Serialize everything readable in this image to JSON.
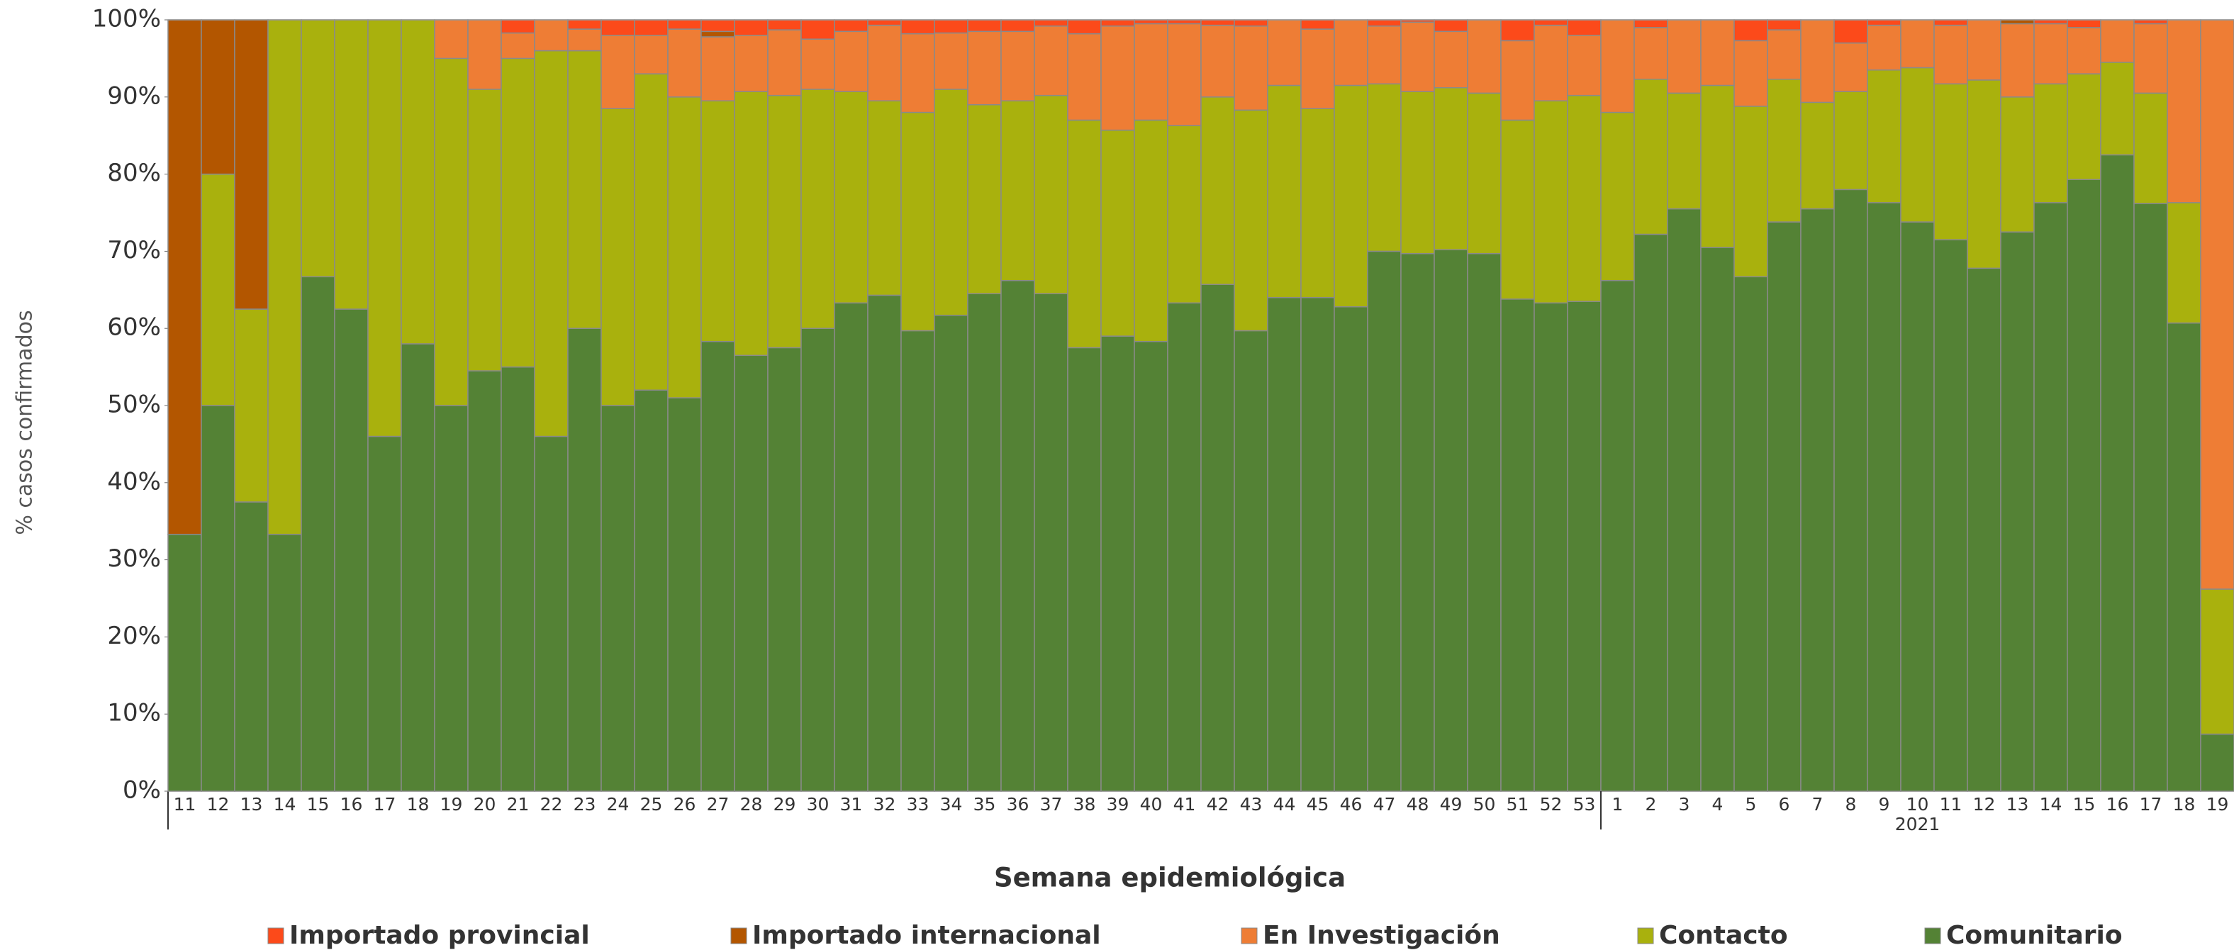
{
  "chart_data": {
    "type": "stacked_bar_percent",
    "y_label": "% casos confirmados",
    "x_label": "Semana epidemiológica",
    "x_group_label": "2021",
    "categories": [
      "11",
      "12",
      "13",
      "14",
      "15",
      "16",
      "17",
      "18",
      "19",
      "20",
      "21",
      "22",
      "23",
      "24",
      "25",
      "26",
      "27",
      "28",
      "29",
      "30",
      "31",
      "32",
      "33",
      "34",
      "35",
      "36",
      "37",
      "38",
      "39",
      "40",
      "41",
      "42",
      "43",
      "44",
      "45",
      "46",
      "47",
      "48",
      "49",
      "50",
      "51",
      "52",
      "53",
      "1",
      "2",
      "3",
      "4",
      "5",
      "6",
      "7",
      "8",
      "9",
      "10",
      "11",
      "12",
      "13",
      "14",
      "15",
      "16",
      "17",
      "18",
      "19"
    ],
    "ylim": [
      0,
      100
    ],
    "yticks": [
      {
        "value": 0,
        "label": "0%"
      },
      {
        "value": 10,
        "label": "10%"
      },
      {
        "value": 20,
        "label": "20%"
      },
      {
        "value": 30,
        "label": "30%"
      },
      {
        "value": 40,
        "label": "40%"
      },
      {
        "value": 50,
        "label": "50%"
      },
      {
        "value": 60,
        "label": "60%"
      },
      {
        "value": 70,
        "label": "70%"
      },
      {
        "value": 80,
        "label": "80%"
      },
      {
        "value": 90,
        "label": "90%"
      },
      {
        "value": 100,
        "label": "100%"
      }
    ],
    "series": [
      {
        "name": "Importado provincial",
        "color": "#fc4a1a",
        "values": [
          0,
          0,
          0,
          0,
          0,
          0,
          0,
          0,
          0,
          0,
          1.7,
          0,
          1.2,
          2,
          2,
          1.2,
          1.5,
          2,
          1.3,
          2.5,
          1.5,
          0.7,
          1.8,
          1.7,
          1.5,
          1.5,
          0.8,
          1.8,
          0.8,
          0.5,
          0.5,
          0.7,
          0.8,
          0,
          1.2,
          0,
          0.8,
          0.3,
          1.5,
          0,
          2.7,
          0.7,
          2,
          0,
          1,
          0,
          0,
          2.7,
          1.3,
          0,
          3,
          0.7,
          0,
          0.7,
          0,
          0,
          0.5,
          1,
          0,
          0.5,
          0,
          0
        ]
      },
      {
        "name": "Importado internacional",
        "color": "#b35600",
        "values": [
          66.7,
          20,
          37.5,
          0,
          0,
          0,
          0,
          0,
          0,
          0,
          0,
          0,
          0,
          0,
          0,
          0,
          0.7,
          0,
          0,
          0,
          0,
          0,
          0,
          0,
          0,
          0,
          0,
          0,
          0,
          0,
          0,
          0,
          0,
          0,
          0,
          0,
          0,
          0,
          0,
          0,
          0,
          0,
          0,
          0,
          0,
          0,
          0,
          0,
          0,
          0,
          0,
          0,
          0,
          0,
          0,
          0.5,
          0,
          0,
          0,
          0,
          0,
          0
        ]
      },
      {
        "name": "En Investigación",
        "color": "#ee7d35",
        "values": [
          0,
          0,
          0,
          0,
          0,
          0,
          0,
          0,
          5,
          9,
          3.3,
          4,
          2.8,
          9.5,
          5,
          8.8,
          8.3,
          7.3,
          8.5,
          6.5,
          7.8,
          9.8,
          10.2,
          7.3,
          9.5,
          9,
          9,
          11.2,
          13.5,
          12.5,
          13.2,
          9.3,
          10.9,
          8.5,
          10.3,
          8.5,
          7.5,
          9,
          7.3,
          9.5,
          10.3,
          9.8,
          7.8,
          12,
          6.7,
          9.5,
          8.5,
          8.5,
          6.4,
          10.7,
          6.3,
          5.8,
          6.2,
          7.6,
          7.8,
          9.5,
          7.8,
          6,
          5.5,
          9,
          23.7,
          73.8
        ]
      },
      {
        "name": "Contacto",
        "color": "#a9b10d",
        "values": [
          0,
          30,
          25,
          66.7,
          33.3,
          37.5,
          54,
          42,
          45,
          36.5,
          40,
          50,
          36,
          38.5,
          41,
          39,
          31.2,
          34.2,
          32.7,
          31,
          27.4,
          25.2,
          28.3,
          29.3,
          24.5,
          23.3,
          25.7,
          29.5,
          26.7,
          28.7,
          23,
          24.3,
          28.6,
          27.5,
          24.5,
          28.7,
          21.7,
          21,
          21,
          20.8,
          23.2,
          26.2,
          26.7,
          21.8,
          20.1,
          15,
          21,
          22.1,
          18.5,
          13.8,
          12.7,
          17.2,
          20,
          20.2,
          24.4,
          17.5,
          15.4,
          13.7,
          12,
          14.3,
          15.6,
          18.8
        ]
      },
      {
        "name": "Comunitario",
        "color": "#548235",
        "values": [
          33.3,
          50,
          37.5,
          33.3,
          66.7,
          62.5,
          46,
          58,
          50,
          54.5,
          55,
          46,
          60,
          50,
          52,
          51,
          58.3,
          56.5,
          57.5,
          60,
          63.3,
          64.3,
          59.7,
          61.7,
          64.5,
          66.2,
          64.5,
          57.5,
          59,
          58.3,
          63.3,
          65.7,
          59.7,
          64,
          64,
          62.8,
          70,
          69.7,
          70.2,
          69.7,
          63.8,
          63.3,
          63.5,
          66.2,
          72.2,
          75.5,
          70.5,
          66.7,
          73.8,
          75.5,
          78,
          76.3,
          73.8,
          71.5,
          67.8,
          72.5,
          76.3,
          79.3,
          82.5,
          76.2,
          60.7,
          7.4
        ]
      }
    ]
  }
}
